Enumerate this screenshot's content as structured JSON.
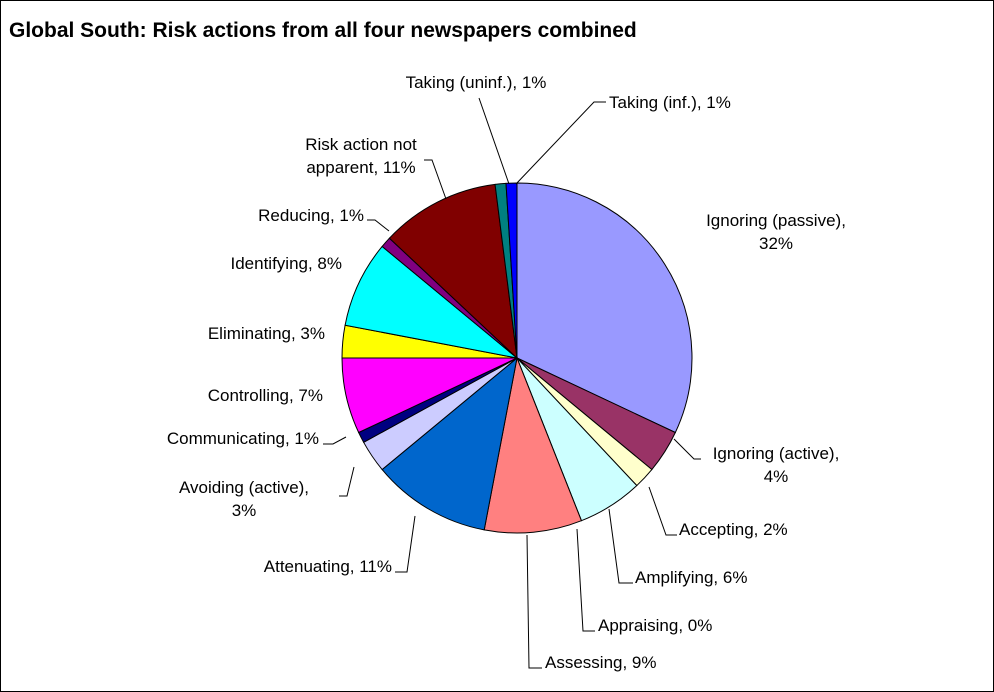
{
  "chart_data": {
    "type": "pie",
    "title": "Global South: Risk actions from all four newspapers combined",
    "slices": [
      {
        "label": "Ignoring (passive), 32%",
        "category": "Ignoring (passive)",
        "value": 32,
        "color": "#9999FF"
      },
      {
        "label": "Ignoring (active), 4%",
        "category": "Ignoring (active)",
        "value": 4,
        "color": "#993366"
      },
      {
        "label": "Accepting, 2%",
        "category": "Accepting",
        "value": 2,
        "color": "#FFFFCC"
      },
      {
        "label": "Amplifying, 6%",
        "category": "Amplifying",
        "value": 6,
        "color": "#CCFFFF"
      },
      {
        "label": "Appraising, 0%",
        "category": "Appraising",
        "value": 0,
        "color": "#660066"
      },
      {
        "label": "Assessing, 9%",
        "category": "Assessing",
        "value": 9,
        "color": "#FF8080"
      },
      {
        "label": "Attenuating, 11%",
        "category": "Attenuating",
        "value": 11,
        "color": "#0066CC"
      },
      {
        "label": "Avoiding (active), 3%",
        "category": "Avoiding (active)",
        "value": 3,
        "color": "#CCCCFF"
      },
      {
        "label": "Communicating, 1%",
        "category": "Communicating",
        "value": 1,
        "color": "#000080"
      },
      {
        "label": "Controlling, 7%",
        "category": "Controlling",
        "value": 7,
        "color": "#FF00FF"
      },
      {
        "label": "Eliminating, 3%",
        "category": "Eliminating",
        "value": 3,
        "color": "#FFFF00"
      },
      {
        "label": "Identifying, 8%",
        "category": "Identifying",
        "value": 8,
        "color": "#00FFFF"
      },
      {
        "label": "Reducing, 1%",
        "category": "Reducing",
        "value": 1,
        "color": "#800080"
      },
      {
        "label": "Risk action not apparent, 11%",
        "category": "Risk action not apparent",
        "value": 11,
        "color": "#800000"
      },
      {
        "label": "Taking (uninf.), 1%",
        "category": "Taking (uninf.)",
        "value": 1,
        "color": "#008080"
      },
      {
        "label": "Taking (inf.), 1%",
        "category": "Taking (inf.)",
        "value": 1,
        "color": "#0000FF"
      }
    ],
    "legend": "none",
    "data_labels": "outside-with-leader-lines"
  }
}
